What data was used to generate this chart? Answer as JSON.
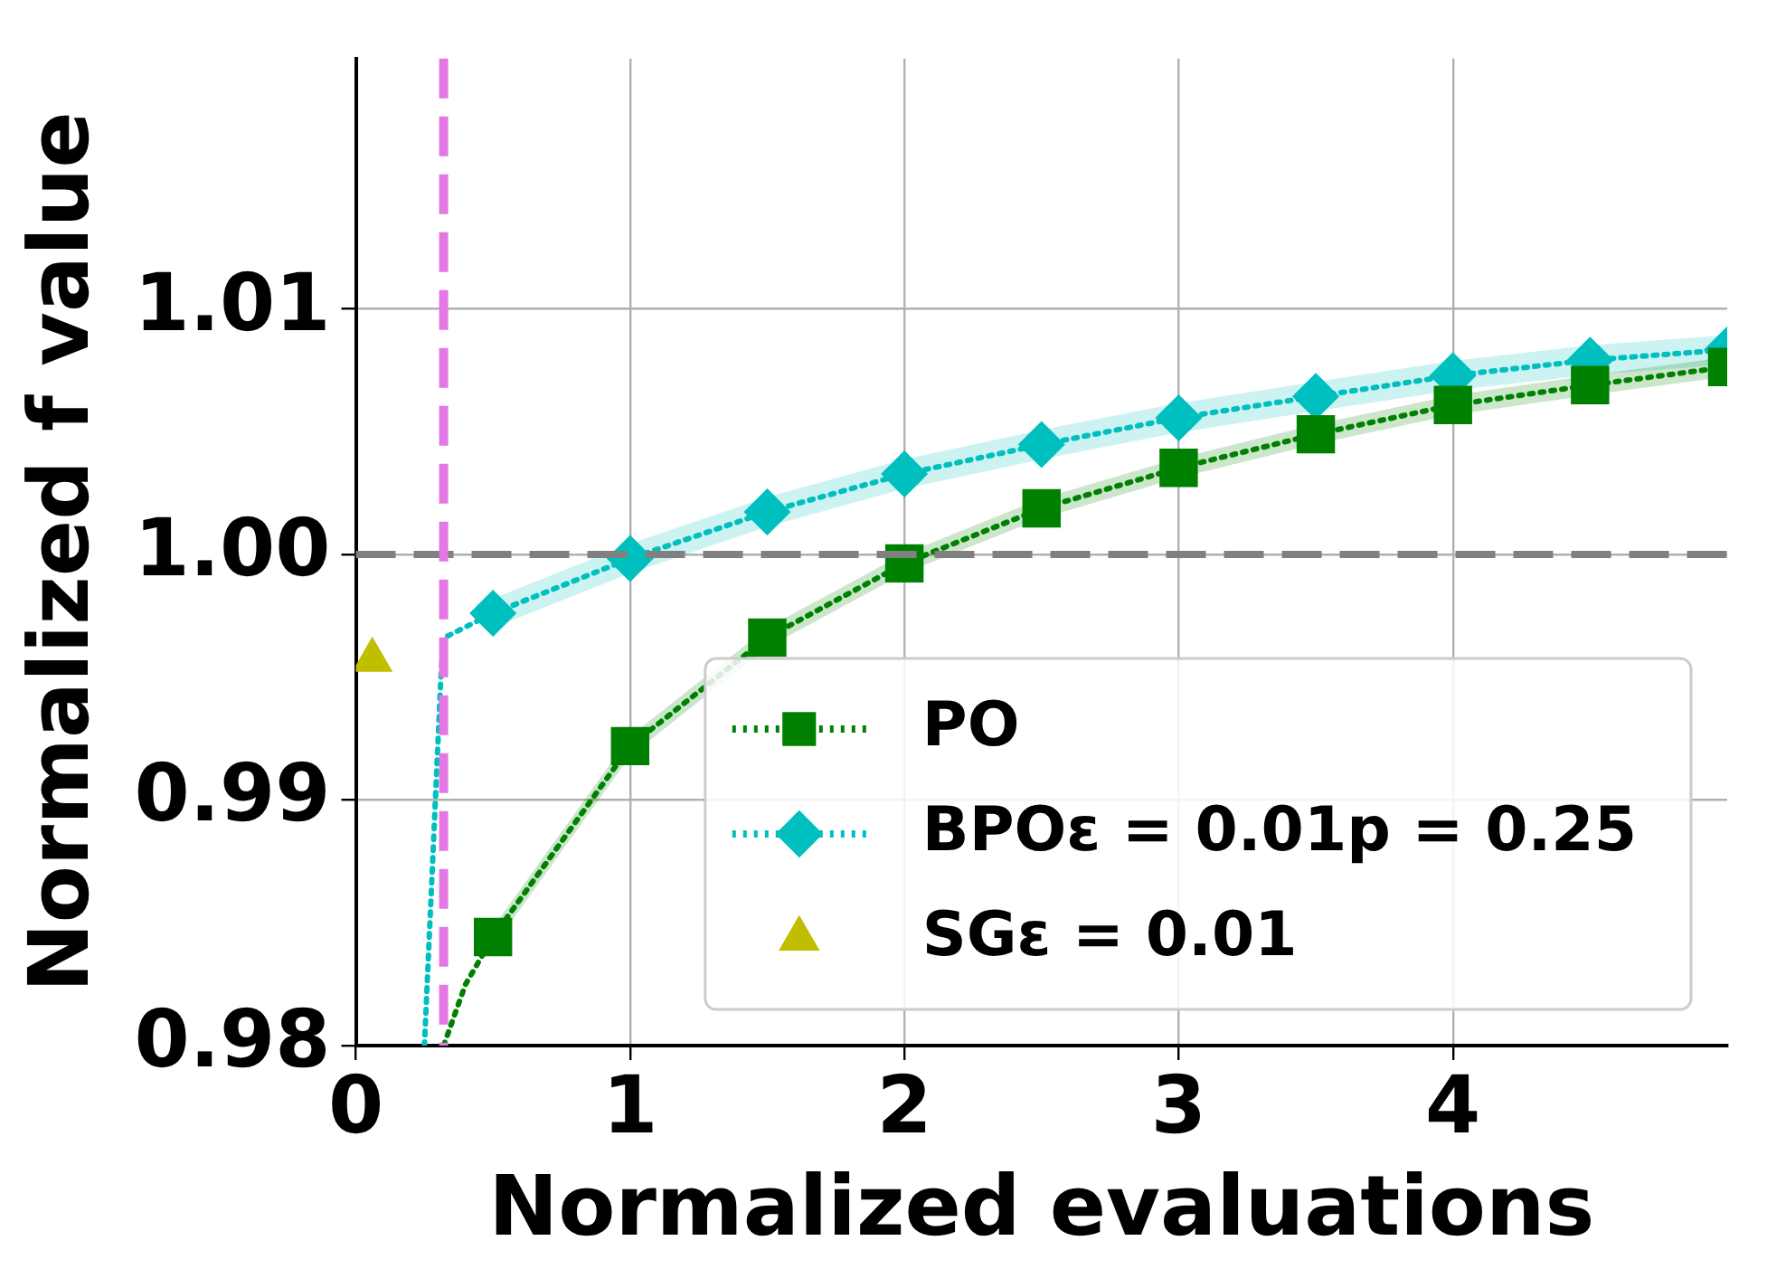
{
  "chart_data": {
    "type": "line",
    "xlabel": "Normalized evaluations",
    "ylabel": "Normalized f value",
    "xlim": [
      0,
      5
    ],
    "xticks": [
      0,
      1,
      2,
      3,
      4
    ],
    "ylim": [
      0.98,
      1.0202
    ],
    "yticks": [
      0.98,
      0.99,
      {
        "value": 1.0,
        "label": "1.00"
      },
      1.01
    ],
    "grid": true,
    "legend": "bottom right",
    "line_style": "dotted",
    "series": [
      {
        "name": "PO",
        "color": "#008000",
        "marker": "square",
        "x": [
          0.5,
          1,
          1.5,
          2,
          2.5,
          3,
          3.5,
          4,
          4.5,
          5
        ],
        "values": [
          0.98442,
          0.9922,
          0.99662,
          0.99964,
          1.00188,
          1.00353,
          1.0049,
          1.00609,
          1.0069,
          1.00764
        ],
        "lower": [
          0.98402,
          0.9918,
          0.99622,
          0.99924,
          1.00148,
          1.00313,
          1.0045,
          1.00569,
          1.0065,
          1.00724
        ],
        "upper": [
          0.98482,
          0.9926,
          0.99702,
          1.00004,
          1.00228,
          1.00393,
          1.0053,
          1.00649,
          1.0073,
          1.00804
        ]
      },
      {
        "name": "BPOε = 0.01p = 0.25",
        "color": "#00bfbf",
        "marker": "diamond",
        "x": [
          0.5,
          1,
          1.5,
          2,
          2.5,
          3,
          3.5,
          4,
          4.5,
          5
        ],
        "values": [
          0.99761,
          0.99984,
          1.00174,
          1.00328,
          1.00448,
          1.00557,
          1.00644,
          1.00729,
          1.00792,
          1.00834
        ],
        "lower": [
          0.99701,
          0.99924,
          1.00114,
          1.00268,
          1.00388,
          1.00497,
          1.00584,
          1.00669,
          1.00732,
          1.00774
        ],
        "upper": [
          0.99821,
          1.00044,
          1.00234,
          1.00388,
          1.00508,
          1.00617,
          1.00704,
          1.00789,
          1.00852,
          1.00894
        ]
      },
      {
        "name": "SGε = 0.01",
        "color": "#bfbf00",
        "type": "scatter",
        "marker": "triangle",
        "x": [
          0.06
        ],
        "values": [
          0.9957
        ]
      },
      {
        "color": "#00bfbf",
        "marker": "none",
        "x": [
          0.25,
          0.29,
          0.31,
          0.32,
          0.5
        ],
        "values": [
          0.98,
          0.99,
          0.995,
          0.9966,
          0.99761
        ]
      },
      {
        "color": "#008000",
        "marker": "none",
        "x": [
          0.32,
          0.4,
          0.5
        ],
        "values": [
          0.98,
          0.9825,
          0.98442
        ]
      }
    ],
    "ref_lines": [
      {
        "axis": "y",
        "value": 1.0,
        "color": "#808080",
        "line_style": "dashed"
      },
      {
        "axis": "x",
        "value": 0.32,
        "color": "#e377e3",
        "line_style": "dashed"
      }
    ]
  }
}
